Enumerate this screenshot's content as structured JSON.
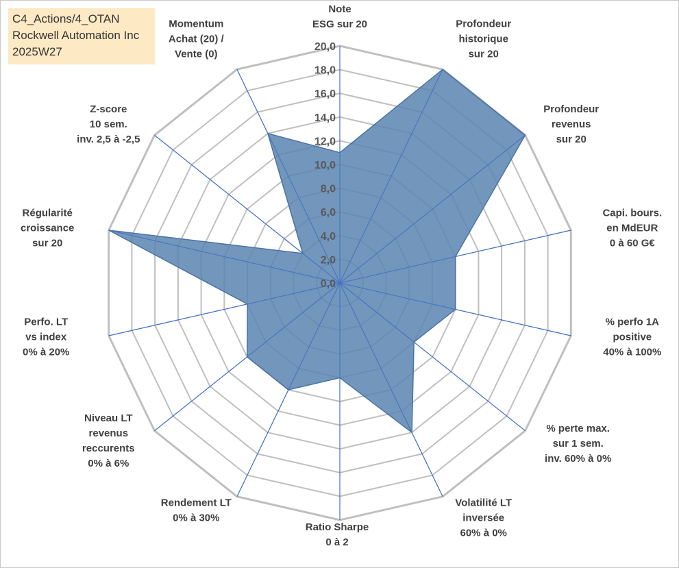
{
  "header": {
    "lines": [
      "C4_Actions/4_OTAN",
      "Rockwell Automation Inc",
      "2025W27"
    ]
  },
  "chart_data": {
    "type": "radar",
    "title": "",
    "rlim": [
      0,
      20
    ],
    "rticks": [
      "0,0",
      "2,0",
      "4,0",
      "6,0",
      "8,0",
      "10,0",
      "12,0",
      "14,0",
      "16,0",
      "18,0",
      "20,0"
    ],
    "grid": true,
    "fill_color": "#5b84b1",
    "grid_color": "#bfbfbf",
    "spoke_color": "#4472c4",
    "axes": [
      {
        "label": [
          "Note",
          "ESG sur 20"
        ],
        "value": 11.0
      },
      {
        "label": [
          "Profondeur",
          "historique",
          "sur 20"
        ],
        "value": 20.0
      },
      {
        "label": [
          "Profondeur",
          "revenus",
          "sur 20"
        ],
        "value": 20.0
      },
      {
        "label": [
          "Capi. bours.",
          "en MdEUR",
          "0 à 60 G€"
        ],
        "value": 10.0
      },
      {
        "label": [
          "% perfo 1A",
          "positive",
          "40% à 100%"
        ],
        "value": 10.0
      },
      {
        "label": [
          "% perte max.",
          "sur 1 sem.",
          "inv. 60% à 0%"
        ],
        "value": 8.0
      },
      {
        "label": [
          "Volatilité LT",
          "inversée",
          "60% à 0%"
        ],
        "value": 14.0
      },
      {
        "label": [
          "Ratio Sharpe",
          "0 à 2"
        ],
        "value": 8.0
      },
      {
        "label": [
          "Rendement LT",
          "0% à 30%"
        ],
        "value": 10.0
      },
      {
        "label": [
          "Niveau LT",
          "revenus",
          "reccurents",
          "0% à 6%"
        ],
        "value": 10.0
      },
      {
        "label": [
          "Perfo. LT",
          "vs index",
          "0% à 20%"
        ],
        "value": 8.0
      },
      {
        "label": [
          "Régularité",
          "croissance",
          "sur 20"
        ],
        "value": 20.0
      },
      {
        "label": [
          "Z-score",
          "10 sem.",
          "inv. 2,5 à -2,5"
        ],
        "value": 4.0
      },
      {
        "label": [
          "Momentum",
          "Achat (20) /",
          "Vente (0)"
        ],
        "value": 14.0
      }
    ]
  }
}
